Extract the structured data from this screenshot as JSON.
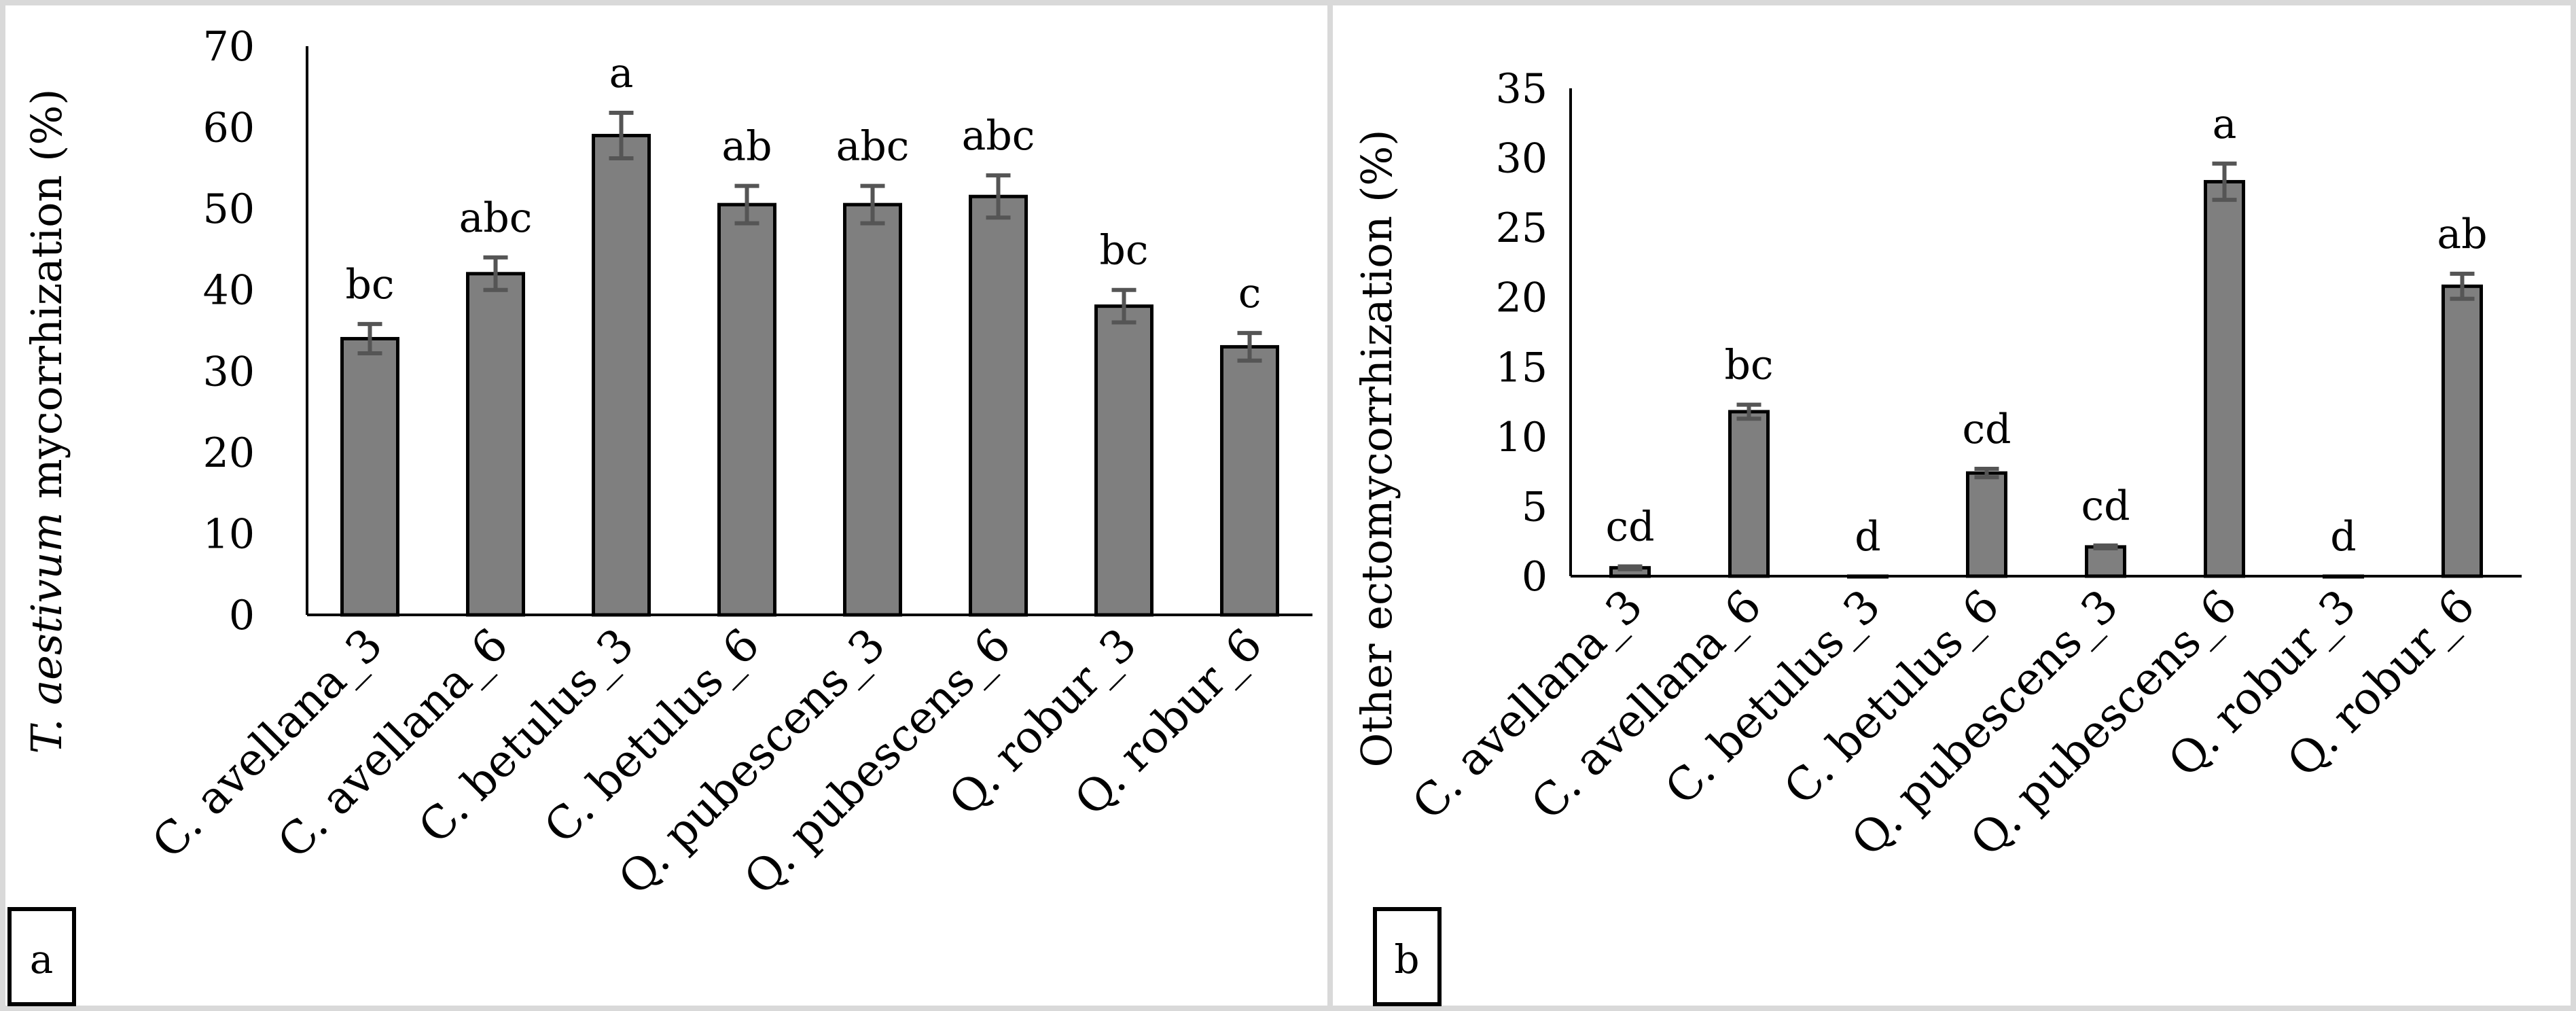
{
  "chart_data": [
    {
      "type": "bar",
      "panel_label": "a",
      "ylabel_italic": "T. aestivum",
      "ylabel_rest": " mycorrhization (%)",
      "ylim": [
        0,
        70
      ],
      "yticks": [
        0,
        10,
        20,
        30,
        40,
        50,
        60,
        70
      ],
      "categories": [
        "C. avellana_3",
        "C. avellana_6",
        "C. betulus_3",
        "C. betulus_6",
        "Q. pubescens_3",
        "Q. pubescens_6",
        "Q. robur_3",
        "Q. robur_6"
      ],
      "values": [
        34,
        42,
        59,
        50.5,
        50.5,
        51.5,
        38,
        33
      ],
      "errors": [
        1.8,
        2.0,
        2.8,
        2.3,
        2.3,
        2.6,
        2.0,
        1.7
      ],
      "letters": [
        "bc",
        "abc",
        "a",
        "ab",
        "abc",
        "abc",
        "bc",
        "c"
      ]
    },
    {
      "type": "bar",
      "panel_label": "b",
      "ylabel": "Other ectomycorrhization (%)",
      "ylim": [
        0,
        35
      ],
      "yticks": [
        0,
        5,
        10,
        15,
        20,
        25,
        30,
        35
      ],
      "categories": [
        "C. avellana_3",
        "C. avellana_6",
        "C. betulus_3",
        "C. betulus_6",
        "Q. pubescens_3",
        "Q. pubescens_6",
        "Q. robur_3",
        "Q. robur_6"
      ],
      "values": [
        0.6,
        11.8,
        0,
        7.4,
        2.1,
        28.3,
        0,
        20.8
      ],
      "errors": [
        0.1,
        0.5,
        0,
        0.3,
        0.1,
        1.3,
        0,
        0.9
      ],
      "letters": [
        "cd",
        "bc",
        "d",
        "cd",
        "cd",
        "a",
        "d",
        "ab"
      ]
    }
  ]
}
